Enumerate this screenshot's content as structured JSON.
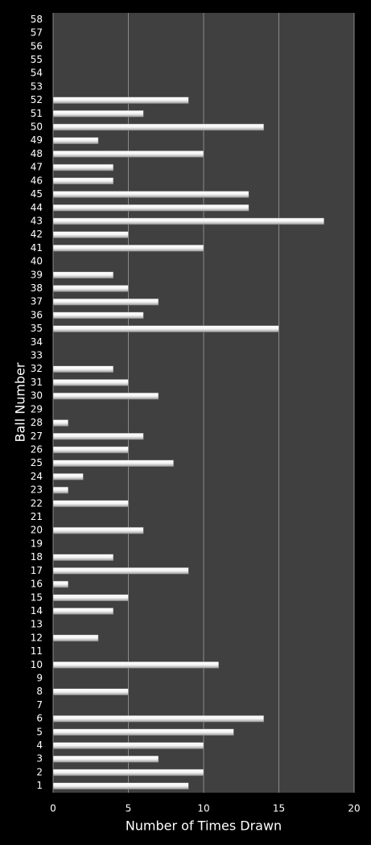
{
  "chart_data": {
    "type": "barh",
    "y_label": "Ball Number",
    "x_label": "Number of Times Drawn",
    "categories": [
      "1",
      "2",
      "3",
      "4",
      "5",
      "6",
      "7",
      "8",
      "9",
      "10",
      "11",
      "12",
      "13",
      "14",
      "15",
      "16",
      "17",
      "18",
      "19",
      "20",
      "21",
      "22",
      "23",
      "24",
      "25",
      "26",
      "27",
      "28",
      "29",
      "30",
      "31",
      "32",
      "33",
      "34",
      "35",
      "36",
      "37",
      "38",
      "39",
      "40",
      "41",
      "42",
      "43",
      "44",
      "45",
      "46",
      "47",
      "48",
      "49",
      "50",
      "51",
      "52",
      "53",
      "54",
      "55",
      "56",
      "57",
      "58"
    ],
    "values": [
      9,
      10,
      7,
      10,
      12,
      14,
      0,
      5,
      0,
      11,
      0,
      3,
      0,
      4,
      5,
      1,
      9,
      4,
      0,
      6,
      0,
      5,
      1,
      2,
      8,
      5,
      6,
      1,
      0,
      7,
      5,
      4,
      0,
      0,
      15,
      6,
      7,
      5,
      4,
      0,
      10,
      5,
      18,
      13,
      13,
      4,
      4,
      10,
      3,
      14,
      6,
      9,
      0,
      0,
      0,
      0,
      0,
      0
    ],
    "color": "#ffffff",
    "xlim": [
      0,
      20
    ],
    "xticks": [
      0,
      5,
      10,
      15,
      20
    ],
    "grid": true
  }
}
